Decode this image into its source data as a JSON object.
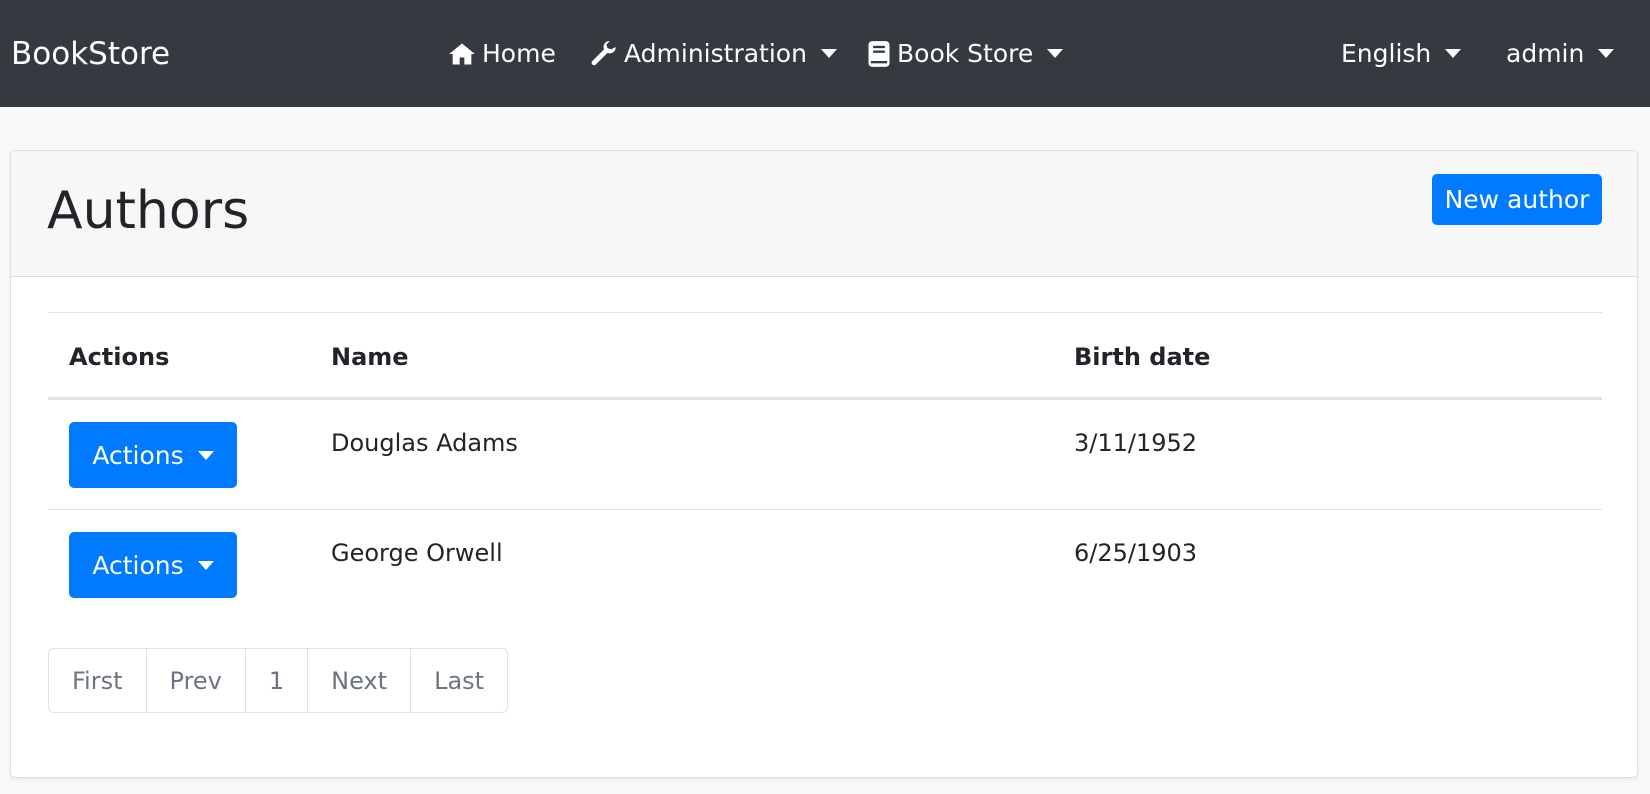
{
  "navbar": {
    "brand": "BookStore",
    "items": [
      {
        "label": "Home",
        "icon": "home-icon"
      },
      {
        "label": "Administration",
        "icon": "wrench-icon"
      },
      {
        "label": "Book Store",
        "icon": "book-icon"
      }
    ],
    "language": "English",
    "user": "admin"
  },
  "page": {
    "title": "Authors",
    "new_button": "New author"
  },
  "table": {
    "headers": [
      "Actions",
      "Name",
      "Birth date"
    ],
    "rows": [
      {
        "action": "Actions",
        "name": "Douglas Adams",
        "birth": "3/11/1952"
      },
      {
        "action": "Actions",
        "name": "George Orwell",
        "birth": "6/25/1903"
      }
    ]
  },
  "pagination": [
    "First",
    "Prev",
    "1",
    "Next",
    "Last"
  ],
  "colors": {
    "navbar": "#343a40",
    "primary": "#007bff"
  }
}
